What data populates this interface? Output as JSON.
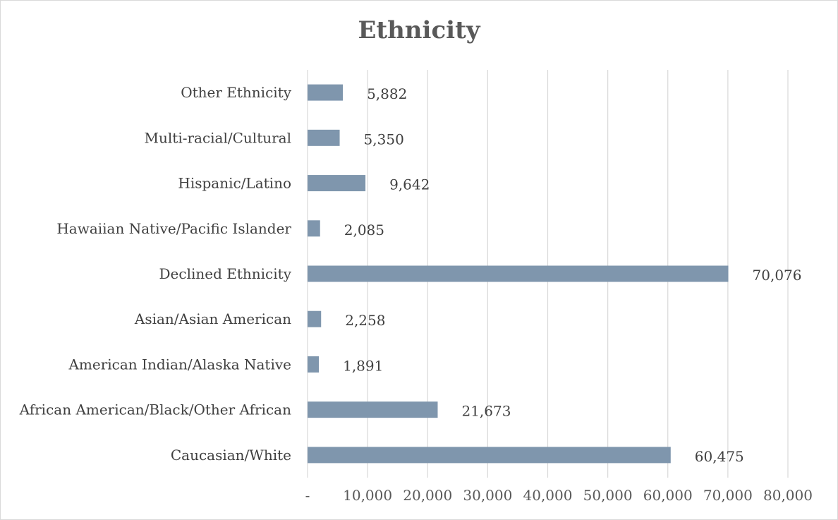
{
  "chart_data": {
    "type": "bar",
    "orientation": "horizontal",
    "title": "Ethnicity",
    "xlabel": "",
    "ylabel": "",
    "categories": [
      "Caucasian/White",
      "African American/Black/Other African",
      "American Indian/Alaska Native",
      "Asian/Asian American",
      "Declined Ethnicity",
      "Hawaiian Native/Pacific Islander",
      "Hispanic/Latino",
      "Multi-racial/Cultural",
      "Other Ethnicity"
    ],
    "values": [
      60475,
      21673,
      1891,
      2258,
      70076,
      2085,
      9642,
      5350,
      5882
    ],
    "value_labels": [
      "60,475",
      "21,673",
      "1,891",
      "2,258",
      "70,076",
      "2,085",
      "9,642",
      "5,350",
      "5,882"
    ],
    "xlim": [
      0,
      80000
    ],
    "x_ticks": [
      0,
      10000,
      20000,
      30000,
      40000,
      50000,
      60000,
      70000,
      80000
    ],
    "x_tick_labels": [
      "-",
      "10,000",
      "20,000",
      "30,000",
      "40,000",
      "50,000",
      "60,000",
      "70,000",
      "80,000"
    ],
    "grid": true,
    "legend": "none",
    "colors": {
      "bar": "#7f96ad",
      "grid": "#d9d9d9",
      "text": "#404040",
      "title": "#595959"
    }
  }
}
